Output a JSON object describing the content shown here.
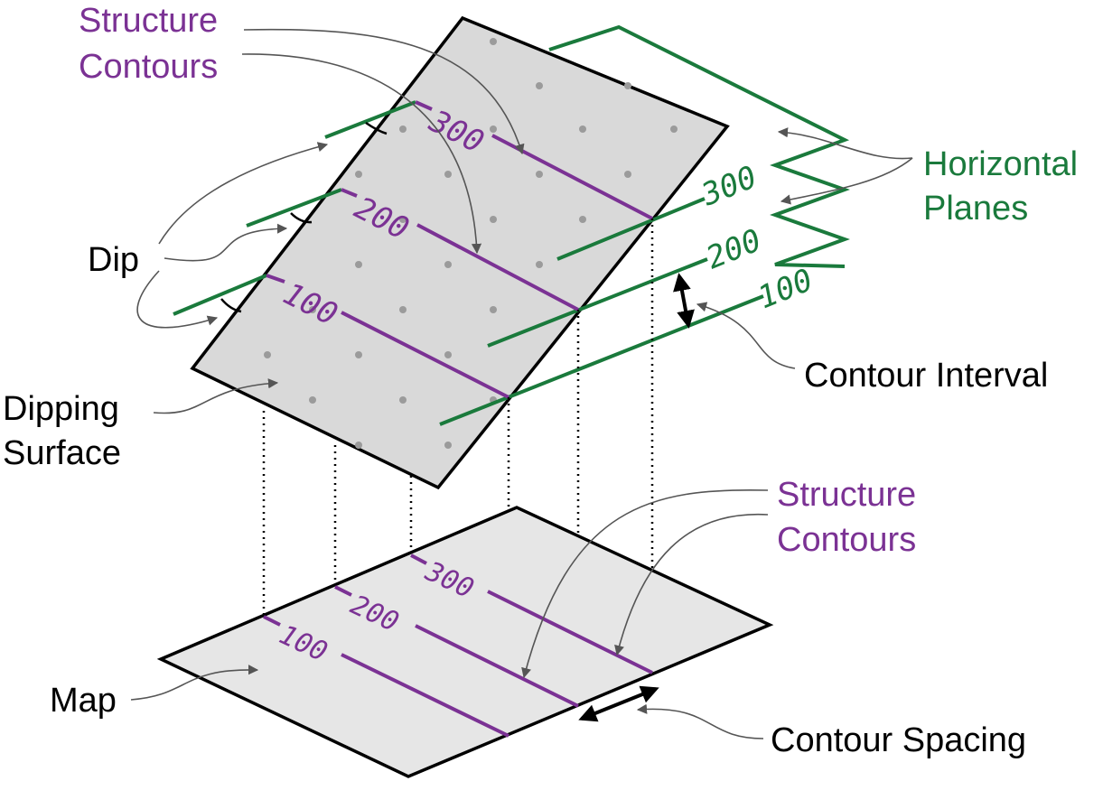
{
  "labels": {
    "structure_contours_top_1": "Structure",
    "structure_contours_top_2": "Contours",
    "horizontal_planes_1": "Horizontal",
    "horizontal_planes_2": "Planes",
    "dip": "Dip",
    "dipping_surface_1": "Dipping",
    "dipping_surface_2": "Surface",
    "contour_interval": "Contour Interval",
    "structure_contours_bottom_1": "Structure",
    "structure_contours_bottom_2": "Contours",
    "map": "Map",
    "contour_spacing": "Contour Spacing"
  },
  "surface_contours": [
    "300",
    "200",
    "100"
  ],
  "plane_contours": [
    "300",
    "200",
    "100"
  ],
  "map_contours": [
    "300",
    "200",
    "100"
  ],
  "colors": {
    "structure_contour": "#7b3294",
    "horizontal_plane": "#1a7a3c",
    "surface_fill": "#d9d9d9",
    "map_fill": "#e6e6e6"
  }
}
